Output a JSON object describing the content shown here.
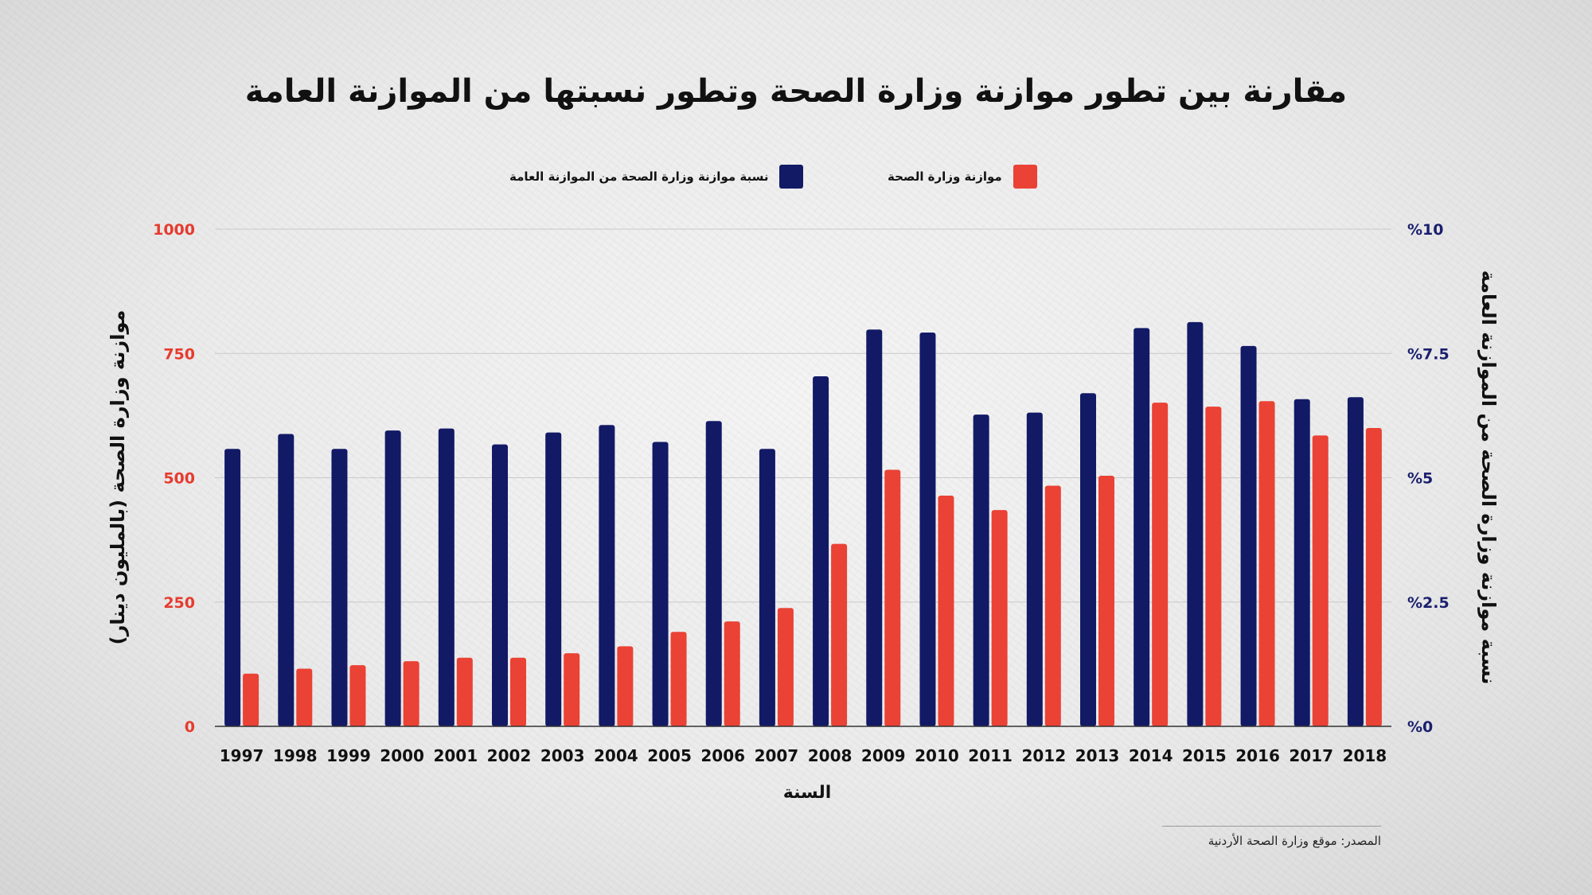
{
  "chart_data": {
    "type": "bar",
    "title": "مقارنة بين تطور موازنة وزارة الصحة وتطور نسبتها من الموازنة العامة",
    "xlabel": "السنة",
    "ylabel_left": "موازنة وزارة الصحة (بالمليون دينار)",
    "ylabel_right": "نسبة موازنة وزارة الصحة من الموازنة العامة",
    "categories": [
      "1997",
      "1998",
      "1999",
      "2000",
      "2001",
      "2002",
      "2003",
      "2004",
      "2005",
      "2006",
      "2007",
      "2008",
      "2009",
      "2010",
      "2011",
      "2012",
      "2013",
      "2014",
      "2015",
      "2016",
      "2017",
      "2018"
    ],
    "left_axis": {
      "ylim": [
        0,
        1000
      ],
      "ticks": [
        "0",
        "250",
        "500",
        "750",
        "1000"
      ],
      "color": "#e63b2e"
    },
    "right_axis": {
      "ylim": [
        0,
        10
      ],
      "ticks": [
        "%0",
        "%2.5",
        "%5",
        "%7.5",
        "%10"
      ],
      "color": "#1a1f6e"
    },
    "grid": true,
    "legend_position": "top",
    "series": [
      {
        "name": "نسبة موازنة وزارة الصحة من الموازنة العامة",
        "axis": "right",
        "color": "#121a66",
        "values": [
          5.58,
          5.88,
          5.58,
          5.95,
          5.99,
          5.67,
          5.91,
          6.06,
          5.72,
          6.14,
          5.58,
          7.04,
          7.98,
          7.92,
          6.27,
          6.31,
          6.7,
          8.01,
          8.13,
          7.65,
          6.58,
          6.62
        ]
      },
      {
        "name": "موازنة وزارة الصحة",
        "axis": "left",
        "color": "#ea4235",
        "values": [
          106,
          116,
          123,
          131,
          138,
          138,
          147,
          161,
          190,
          211,
          238,
          367,
          516,
          464,
          435,
          484,
          504,
          651,
          643,
          654,
          585,
          600
        ]
      }
    ],
    "source": "المصدر: موقع وزارة الصحة الأردنية"
  }
}
